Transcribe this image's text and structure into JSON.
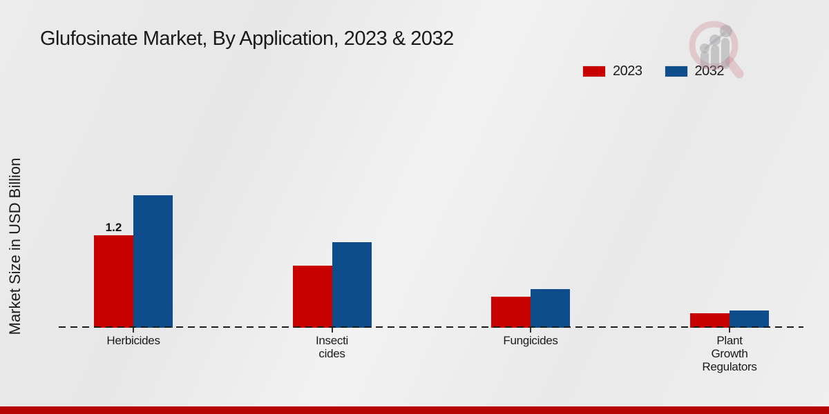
{
  "page": {
    "title": "Glufosinate Market, By Application, 2023 & 2032"
  },
  "y_axis": {
    "label": "Market Size in USD Billion"
  },
  "legend": {
    "items": [
      {
        "label": "2023",
        "color": "#c80000"
      },
      {
        "label": "2032",
        "color": "#0e4d8c"
      }
    ]
  },
  "colors": {
    "accent_red": "#c80000",
    "accent_blue": "#0e4d8c",
    "footer_band": "#b50505",
    "baseline": "#1c1c1c"
  },
  "chart_data": {
    "type": "bar",
    "title": "Glufosinate Market, By Application, 2023 & 2032",
    "xlabel": "",
    "ylabel": "Market Size in USD Billion",
    "categories": [
      "Herbicides",
      "Insecti\ncides",
      "Fungicides",
      "Plant\nGrowth\nRegulators"
    ],
    "series": [
      {
        "name": "2023",
        "color": "#c80000",
        "values": [
          1.2,
          0.81,
          0.4,
          0.19
        ]
      },
      {
        "name": "2032",
        "color": "#0e4d8c",
        "values": [
          1.72,
          1.11,
          0.5,
          0.22
        ]
      }
    ],
    "annotations": [
      {
        "category_index": 0,
        "series_index": 0,
        "text": "1.2"
      }
    ],
    "axis": {
      "grid": false,
      "baseline_style": "dashed",
      "y_axis_ticks_visible": false
    },
    "legend_position": "top-right"
  }
}
